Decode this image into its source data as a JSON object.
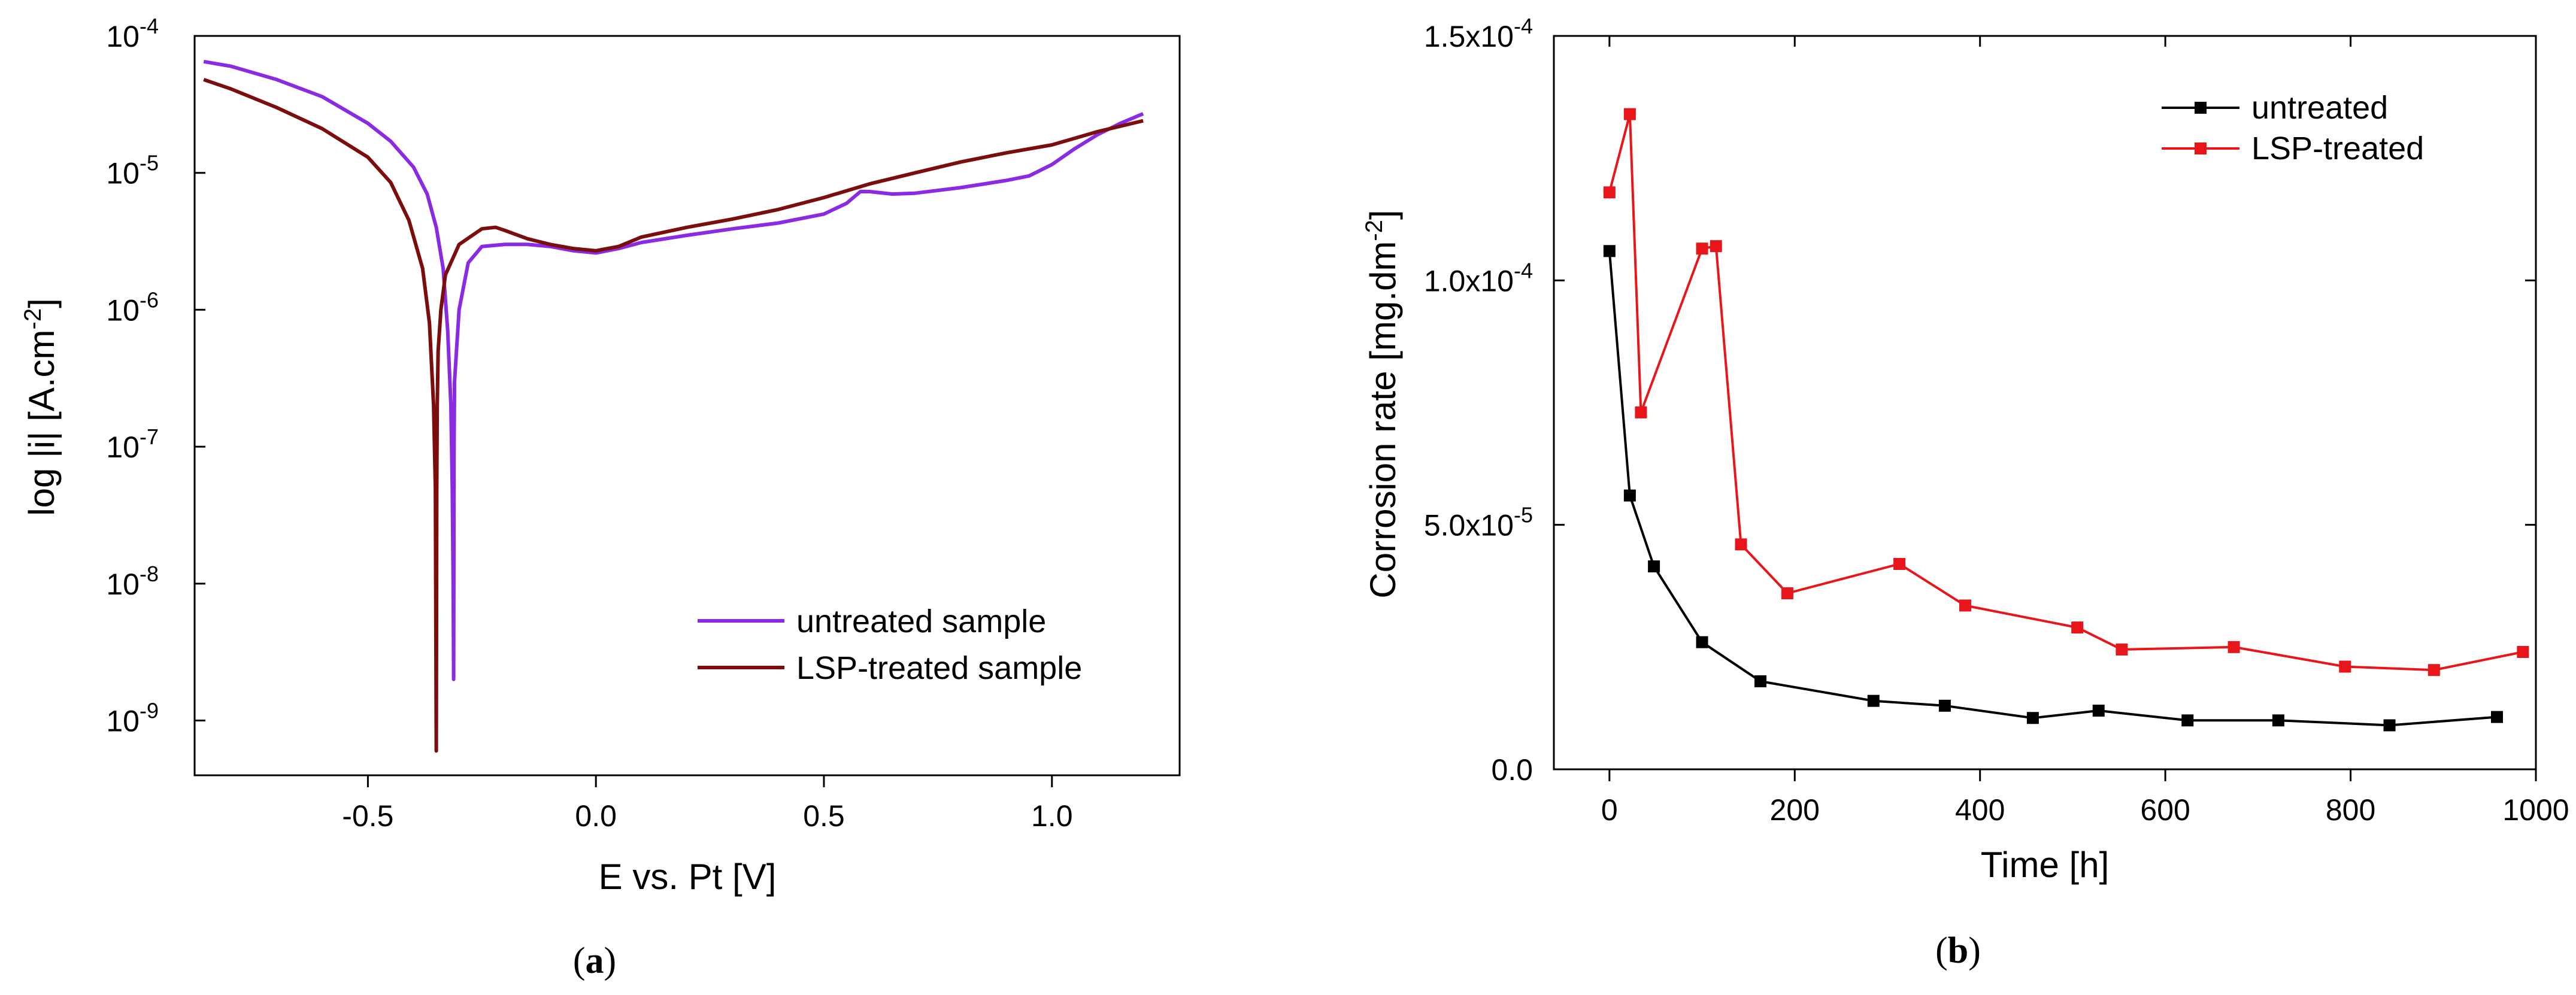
{
  "chart_data": [
    {
      "id": "a",
      "type": "line",
      "caption": "(a)",
      "caption_letter": "a",
      "xlabel": "E vs. Pt [V]",
      "ylabel": "log |i|  [A.cm",
      "ylabel_sup": "-2",
      "ylabel_close": "]",
      "xlim": [
        -0.88,
        1.28
      ],
      "ylim_log10": [
        -9.4,
        -4
      ],
      "xticks": [
        -0.5,
        0.0,
        0.5,
        1.0
      ],
      "xtick_labels": [
        "-0.5",
        "0.0",
        "0.5",
        "1.0"
      ],
      "yticks_exp": [
        -9,
        -8,
        -7,
        -6,
        -5,
        -4
      ],
      "ytick_base": "10",
      "ytick_sup": [
        "-9",
        "-8",
        "-7",
        "-6",
        "-5",
        "-4"
      ],
      "legend_position": "bottom-right",
      "series": [
        {
          "name": "untreated sample",
          "color": "#8A2BE2",
          "x": [
            -0.86,
            -0.8,
            -0.7,
            -0.6,
            -0.5,
            -0.45,
            -0.4,
            -0.37,
            -0.35,
            -0.335,
            -0.325,
            -0.318,
            -0.315,
            -0.313,
            -0.312,
            -0.311,
            -0.31,
            -0.3,
            -0.28,
            -0.25,
            -0.2,
            -0.15,
            -0.1,
            -0.05,
            0.0,
            0.05,
            0.1,
            0.2,
            0.3,
            0.4,
            0.5,
            0.55,
            0.58,
            0.6,
            0.65,
            0.7,
            0.8,
            0.9,
            0.95,
            1.0,
            1.05,
            1.1,
            1.15,
            1.2
          ],
          "y": [
            6.5e-05,
            6e-05,
            4.8e-05,
            3.6e-05,
            2.3e-05,
            1.7e-05,
            1.1e-05,
            7e-06,
            4e-06,
            2e-06,
            7e-07,
            2e-07,
            5e-08,
            1e-08,
            2e-09,
            1e-07,
            3e-07,
            1e-06,
            2.2e-06,
            2.9e-06,
            3e-06,
            3e-06,
            2.9e-06,
            2.7e-06,
            2.6e-06,
            2.8e-06,
            3.1e-06,
            3.5e-06,
            3.9e-06,
            4.3e-06,
            5e-06,
            6e-06,
            7.3e-06,
            7.3e-06,
            7e-06,
            7.1e-06,
            7.8e-06,
            8.8e-06,
            9.5e-06,
            1.15e-05,
            1.5e-05,
            1.9e-05,
            2.3e-05,
            2.7e-05
          ]
        },
        {
          "name": "LSP-treated sample",
          "color": "#7B0D0D",
          "x": [
            -0.86,
            -0.8,
            -0.7,
            -0.6,
            -0.5,
            -0.45,
            -0.41,
            -0.38,
            -0.365,
            -0.356,
            -0.352,
            -0.35,
            -0.349,
            -0.348,
            -0.346,
            -0.34,
            -0.33,
            -0.3,
            -0.25,
            -0.22,
            -0.2,
            -0.15,
            -0.1,
            -0.05,
            0.0,
            0.05,
            0.1,
            0.2,
            0.3,
            0.4,
            0.5,
            0.6,
            0.7,
            0.8,
            0.9,
            1.0,
            1.1,
            1.2
          ],
          "y": [
            4.8e-05,
            4.1e-05,
            3e-05,
            2.1e-05,
            1.3e-05,
            8.5e-06,
            4.5e-06,
            2e-06,
            8e-07,
            2e-07,
            5e-08,
            6e-10,
            5e-08,
            2e-07,
            5e-07,
            1e-06,
            1.8e-06,
            3e-06,
            3.9e-06,
            4e-06,
            3.8e-06,
            3.3e-06,
            3e-06,
            2.8e-06,
            2.7e-06,
            2.9e-06,
            3.4e-06,
            4e-06,
            4.6e-06,
            5.4e-06,
            6.6e-06,
            8.3e-06,
            1e-05,
            1.2e-05,
            1.4e-05,
            1.6e-05,
            2e-05,
            2.4e-05
          ]
        }
      ]
    },
    {
      "id": "b",
      "type": "line",
      "caption": "(b)",
      "caption_letter": "b",
      "xlabel": "Time [h]",
      "ylabel": "Corrosion rate [mg.dm",
      "ylabel_sup": "-2",
      "ylabel_close": "]",
      "xlim": [
        -60,
        1000
      ],
      "ylim": [
        0,
        0.00015
      ],
      "xticks": [
        0,
        200,
        400,
        600,
        800,
        1000
      ],
      "xtick_labels": [
        "0",
        "200",
        "400",
        "600",
        "800",
        "1000"
      ],
      "yticks": [
        0,
        5e-05,
        0.0001,
        0.00015
      ],
      "ytick_mant": [
        "0.0",
        "5.0x10",
        "1.0x10",
        "1.5x10"
      ],
      "ytick_sup": [
        "",
        "-5",
        "-4",
        "-4"
      ],
      "legend_position": "top-right",
      "series": [
        {
          "name": "untreated",
          "color": "#000000",
          "x": [
            0,
            22,
            48,
            100,
            163,
            285,
            362,
            457,
            528,
            624,
            722,
            842,
            958
          ],
          "y": [
            0.000106,
            5.6e-05,
            4.15e-05,
            2.6e-05,
            1.8e-05,
            1.4e-05,
            1.3e-05,
            1.05e-05,
            1.2e-05,
            1e-05,
            1e-05,
            9e-06,
            1.07e-05
          ]
        },
        {
          "name": "LSP-treated",
          "color": "#E8161B",
          "x": [
            0,
            22,
            34,
            100,
            115,
            142,
            192,
            313,
            384,
            505,
            553,
            674,
            794,
            890,
            986
          ],
          "y": [
            0.000118,
            0.000134,
            7.3e-05,
            0.0001065,
            0.000107,
            4.6e-05,
            3.6e-05,
            4.2e-05,
            3.35e-05,
            2.9e-05,
            2.45e-05,
            2.5e-05,
            2.1e-05,
            2.03e-05,
            2.4e-05
          ]
        }
      ]
    }
  ]
}
